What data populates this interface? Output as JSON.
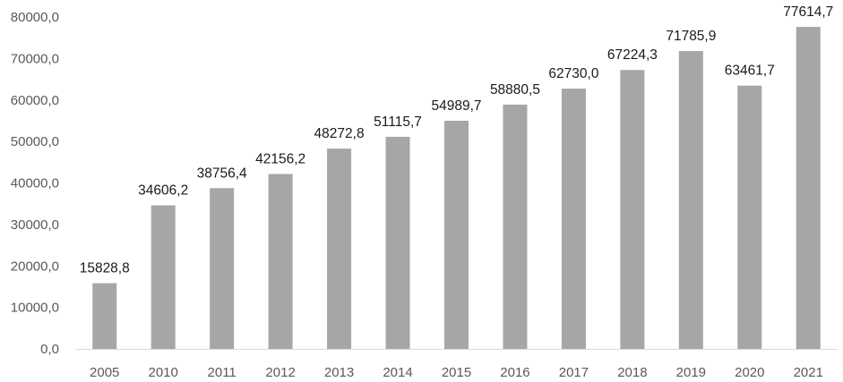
{
  "chart_data": {
    "type": "bar",
    "categories": [
      "2005",
      "2010",
      "2011",
      "2012",
      "2013",
      "2014",
      "2015",
      "2016",
      "2017",
      "2018",
      "2019",
      "2020",
      "2021"
    ],
    "values": [
      15828.8,
      34606.2,
      38756.4,
      42156.2,
      48272.8,
      51115.7,
      54989.7,
      58880.5,
      62730.0,
      67224.3,
      71785.9,
      63461.7,
      77614.7
    ],
    "data_labels": [
      "15828,8",
      "34606,2",
      "38756,4",
      "42156,2",
      "48272,8",
      "51115,7",
      "54989,7",
      "58880,5",
      "62730,0",
      "67224,3",
      "71785,9",
      "63461,7",
      "77614,7"
    ],
    "y_ticks": [
      0,
      10000,
      20000,
      30000,
      40000,
      50000,
      60000,
      70000,
      80000
    ],
    "y_tick_labels": [
      "0,0",
      "10000,0",
      "20000,0",
      "30000,0",
      "40000,0",
      "50000,0",
      "60000,0",
      "70000,0",
      "80000,0"
    ],
    "ylim": [
      0,
      80000
    ],
    "title": "",
    "xlabel": "",
    "ylabel": "",
    "grid": false,
    "legend": "none",
    "bar_color": "#a6a6a6",
    "axis_color": "#d9d9d9"
  }
}
